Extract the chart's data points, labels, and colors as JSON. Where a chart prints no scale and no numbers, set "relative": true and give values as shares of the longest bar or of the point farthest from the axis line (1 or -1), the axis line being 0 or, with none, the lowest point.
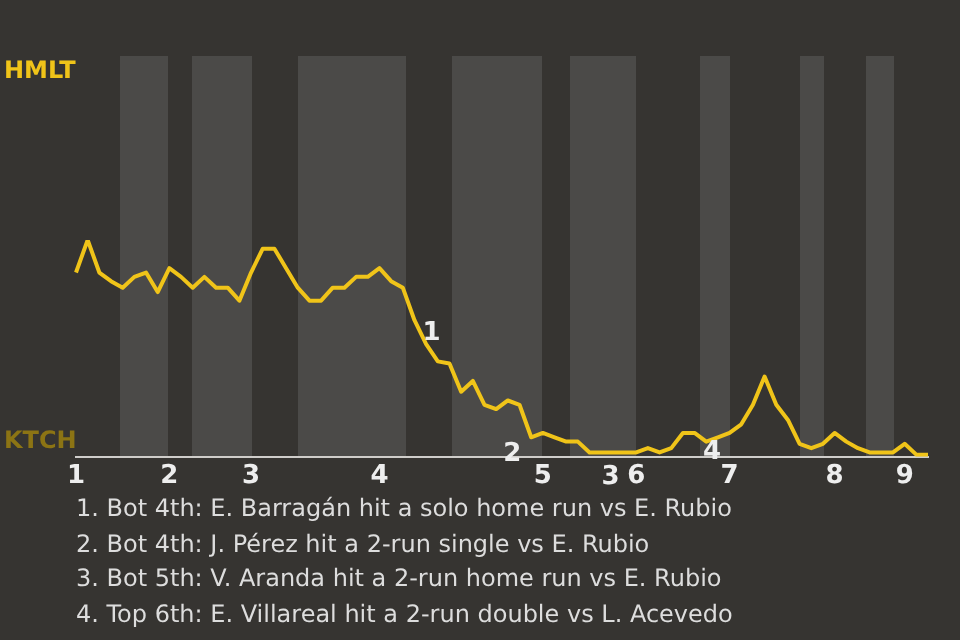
{
  "chart_data": {
    "type": "line",
    "relative": true,
    "categories": [
      "1",
      null,
      null,
      null,
      null,
      null,
      null,
      null,
      "2",
      null,
      null,
      null,
      null,
      null,
      null,
      "3",
      null,
      null,
      null,
      null,
      null,
      null,
      null,
      null,
      null,
      null,
      "4",
      null,
      null,
      null,
      null,
      null,
      null,
      null,
      null,
      null,
      null,
      null,
      null,
      null,
      "5",
      null,
      null,
      null,
      null,
      null,
      null,
      null,
      "6",
      null,
      null,
      null,
      null,
      null,
      null,
      null,
      "7",
      null,
      null,
      null,
      null,
      null,
      null,
      null,
      null,
      "8",
      null,
      null,
      null,
      null,
      null,
      "9",
      null,
      null
    ],
    "series": [
      {
        "color": "#f0c419",
        "values": [
          0.85,
          1,
          0.85,
          0.81,
          0.78,
          0.83,
          0.85,
          0.76,
          0.87,
          0.83,
          0.78,
          0.83,
          0.78,
          0.78,
          0.72,
          0.85,
          0.96,
          0.96,
          0.87,
          0.78,
          0.72,
          0.72,
          0.78,
          0.78,
          0.83,
          0.83,
          0.87,
          0.81,
          0.78,
          0.63,
          0.52,
          0.44,
          0.43,
          0.3,
          0.35,
          0.24,
          0.22,
          0.26,
          0.24,
          0.09,
          0.11,
          0.09,
          0.07,
          0.07,
          0.02,
          0.02,
          0.02,
          0.02,
          0.02,
          0.04,
          0.02,
          0.04,
          0.11,
          0.11,
          0.07,
          0.09,
          0.11,
          0.15,
          0.24,
          0.37,
          0.24,
          0.17,
          0.06,
          0.04,
          0.06,
          0.11,
          0.07,
          0.04,
          0.02,
          0.02,
          0.02,
          0.06,
          0.01,
          0.01
        ]
      }
    ],
    "marker": "none",
    "line_style": "solid",
    "annotations": [
      "HMLT",
      "KTCH",
      "1",
      "2",
      "3",
      "4",
      "1. Bot 4th: E. Barragán hit a solo home run vs E. Rubio",
      "2. Bot 4th: J. Pérez hit a 2-run single vs E. Rubio",
      "3. Bot 5th: V. Aranda hit a 2-run home run vs E. Rubio",
      "4. Top 6th: E. Villareal hit a 2-run double vs L. Acevedo"
    ]
  }
}
